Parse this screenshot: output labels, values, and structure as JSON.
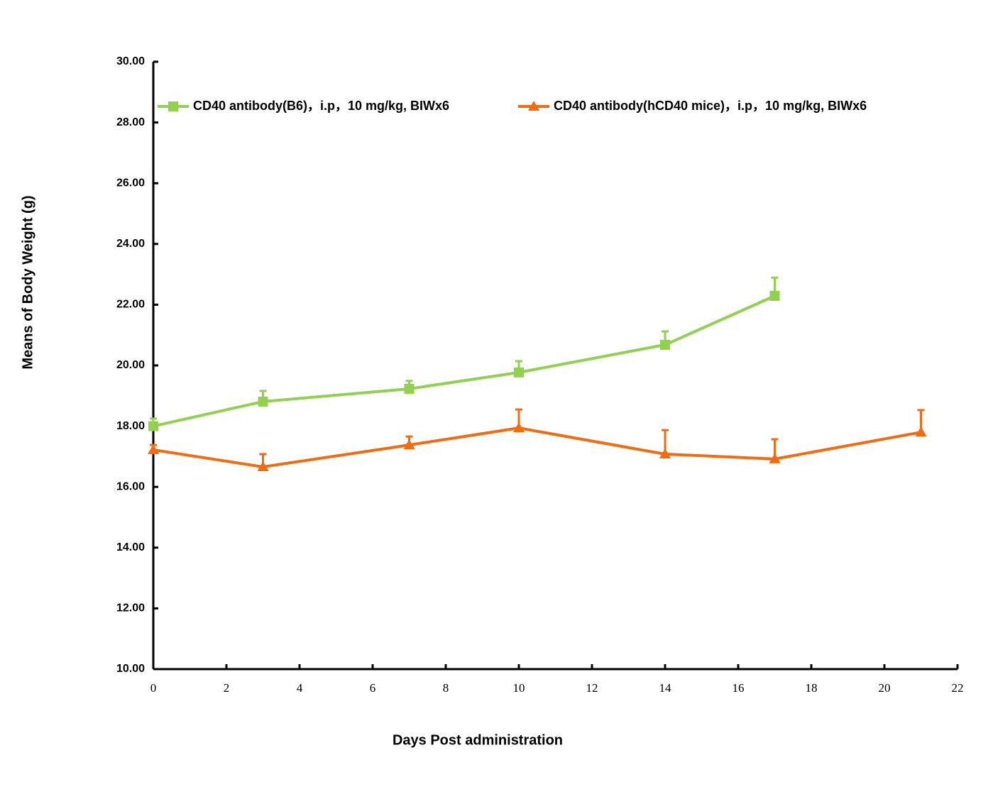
{
  "chart_data": {
    "type": "line",
    "x_label": "Days Post administration",
    "y_label": "Means of Body Weight (g)",
    "x": [
      0,
      3,
      7,
      10,
      14,
      17,
      21
    ],
    "series": [
      {
        "name": "CD40 antibody(B6)，i.p，10 mg/kg, BIWx6",
        "color": "#92d050",
        "marker": "square",
        "values": [
          18.0,
          18.81,
          19.23,
          19.77,
          20.68,
          22.29,
          null
        ],
        "errors": [
          0.25,
          0.35,
          0.26,
          0.37,
          0.44,
          0.6,
          null
        ]
      },
      {
        "name": "CD40 antibody(hCD40 mice)，i.p，10 mg/kg, BIWx6",
        "color": "#f46b0f",
        "marker": "triangle",
        "values": [
          17.22,
          16.66,
          17.38,
          17.94,
          17.08,
          16.92,
          17.8
        ],
        "errors": [
          0.16,
          0.42,
          0.28,
          0.61,
          0.79,
          0.65,
          0.73
        ]
      }
    ],
    "xlim": [
      0,
      22
    ],
    "xticks": [
      0,
      2,
      4,
      6,
      8,
      10,
      12,
      14,
      16,
      18,
      20,
      22
    ],
    "ylim": [
      10,
      30
    ],
    "yticks": [
      {
        "value": 10,
        "label": "10.00"
      },
      {
        "value": 12,
        "label": "12.00"
      },
      {
        "value": 14,
        "label": "14.00"
      },
      {
        "value": 16,
        "label": "16.00"
      },
      {
        "value": 18,
        "label": "18.00"
      },
      {
        "value": 20,
        "label": "20.00"
      },
      {
        "value": 22,
        "label": "22.00"
      },
      {
        "value": 24,
        "label": "24.00"
      },
      {
        "value": 26,
        "label": "26.00"
      },
      {
        "value": 28,
        "label": "28.00"
      },
      {
        "value": 30,
        "label": "30.00"
      }
    ],
    "legend": "top",
    "grid": false
  }
}
